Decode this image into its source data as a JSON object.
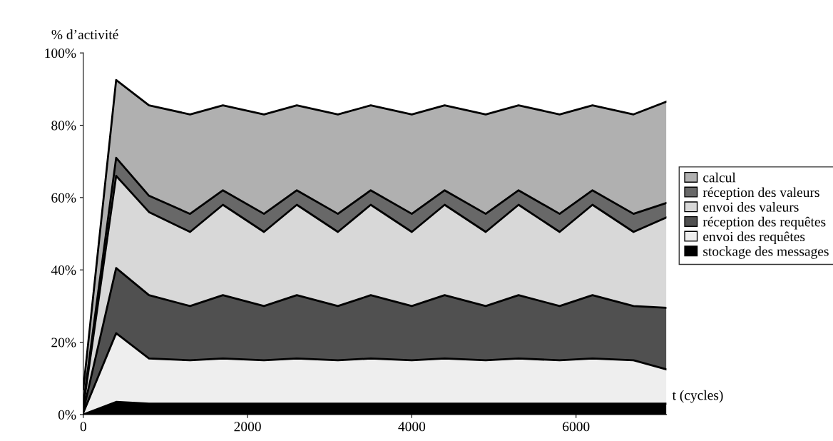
{
  "chart_data": {
    "type": "area",
    "stacked": true,
    "ylabel": "% d’activité",
    "xlabel": "t (cycles)",
    "x": [
      0,
      400,
      800,
      1300,
      1700,
      2200,
      2600,
      3100,
      3500,
      4000,
      4400,
      4900,
      5300,
      5800,
      6200,
      6700,
      7100
    ],
    "xlim": [
      0,
      7100
    ],
    "xticks": [
      0,
      2000,
      4000,
      6000
    ],
    "ylim": [
      0,
      100
    ],
    "yticks": [
      {
        "value": 0,
        "label": "0%"
      },
      {
        "value": 20,
        "label": "20%"
      },
      {
        "value": 40,
        "label": "40%"
      },
      {
        "value": 60,
        "label": "60%"
      },
      {
        "value": 80,
        "label": "80%"
      },
      {
        "value": 100,
        "label": "100%"
      }
    ],
    "grid": false,
    "legend": "right",
    "series": [
      {
        "name": "stockage des messages",
        "color": "#000000",
        "values": [
          0,
          3.5,
          3,
          3,
          3,
          3,
          3,
          3,
          3,
          3,
          3,
          3,
          3,
          3,
          3,
          3,
          3
        ]
      },
      {
        "name": "envoi des requêtes",
        "color": "#eeeeee",
        "values": [
          0.5,
          19,
          12.5,
          12,
          12.5,
          12,
          12.5,
          12,
          12.5,
          12,
          12.5,
          12,
          12.5,
          12,
          12.5,
          12,
          9.5
        ]
      },
      {
        "name": "réception des requêtes",
        "color": "#505050",
        "values": [
          0.5,
          18,
          17.5,
          15,
          17.5,
          15,
          17.5,
          15,
          17.5,
          15,
          17.5,
          15,
          17.5,
          15,
          17.5,
          15,
          17
        ]
      },
      {
        "name": "envoi des valeurs",
        "color": "#d8d8d8",
        "values": [
          1,
          25.5,
          23,
          20.5,
          25,
          20.5,
          25,
          20.5,
          25,
          20.5,
          25,
          20.5,
          25,
          20.5,
          25,
          20.5,
          25
        ]
      },
      {
        "name": "réception des valeurs",
        "color": "#686868",
        "values": [
          1,
          5,
          4.5,
          5,
          4,
          5,
          4,
          5,
          4,
          5,
          4,
          5,
          4,
          5,
          4,
          5,
          4
        ]
      },
      {
        "name": "calcul",
        "color": "#b0b0b0",
        "values": [
          4,
          21.5,
          25,
          27.5,
          23.5,
          27.5,
          23.5,
          27.5,
          23.5,
          27.5,
          23.5,
          27.5,
          23.5,
          27.5,
          23.5,
          27.5,
          28
        ]
      }
    ]
  }
}
